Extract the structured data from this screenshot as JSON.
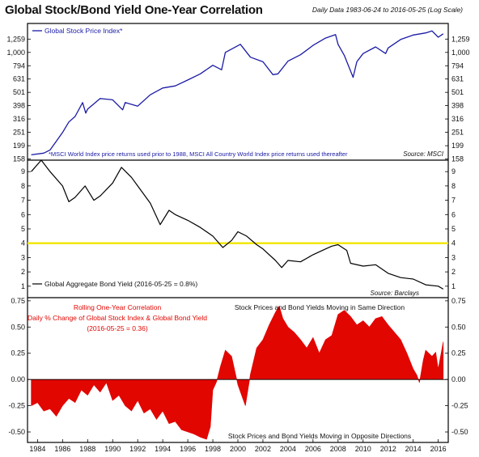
{
  "title": "Global Stock/Bond Yield One-Year Correlation",
  "subtitle": "Daily Data 1983-06-24 to 2016-05-25 (Log Scale)",
  "colors": {
    "stock": "#1a1aa6",
    "bond": "#000000",
    "corr": "#e10600",
    "ref_line": "#f2e600",
    "frame": "#000000"
  },
  "chart_data": [
    {
      "type": "line",
      "panel": "top",
      "legend": "Global Stock Price Index*",
      "note": "*MSCI World Index price returns used prior to 1988, MSCI All Country World Index price returns used thereafter",
      "source": "Source: MSCI",
      "scale": "log",
      "ylim": [
        155,
        1650
      ],
      "yticks": [
        158,
        199,
        251,
        316,
        398,
        501,
        631,
        794,
        1000,
        1259
      ],
      "ytick_labels": [
        "158",
        "199",
        "251",
        "316",
        "398",
        "501",
        "631",
        "794",
        "1,000",
        "1,259"
      ],
      "series": [
        {
          "x": [
            1983.5,
            1984.5,
            1985,
            1985.5,
            1986,
            1986.5,
            1987,
            1987.6,
            1987.85,
            1988,
            1989,
            1990,
            1990.8,
            1991,
            1992,
            1993,
            1994,
            1995,
            1996,
            1997,
            1998,
            1998.7,
            1999,
            2000.2,
            2001,
            2002,
            2002.8,
            2003.2,
            2004,
            2005,
            2006,
            2007,
            2007.8,
            2008,
            2008.5,
            2009.2,
            2009.5,
            2010,
            2011,
            2011.8,
            2012,
            2013,
            2014,
            2015,
            2015.5,
            2016,
            2016.4
          ],
          "y": [
            170,
            175,
            185,
            215,
            250,
            300,
            330,
            420,
            350,
            375,
            450,
            440,
            370,
            420,
            395,
            480,
            540,
            560,
            620,
            690,
            800,
            740,
            1000,
            1150,
            920,
            850,
            680,
            690,
            860,
            960,
            1130,
            1280,
            1360,
            1150,
            950,
            650,
            850,
            980,
            1100,
            980,
            1080,
            1250,
            1350,
            1400,
            1450,
            1300,
            1380
          ]
        }
      ]
    },
    {
      "type": "line",
      "panel": "middle",
      "legend": "Global Aggregate Bond Yield (2016-05-25 = 0.8%)",
      "source": "Source: Barclays",
      "ylim": [
        0.2,
        9.8
      ],
      "yticks": [
        1,
        2,
        3,
        4,
        5,
        6,
        7,
        8,
        9
      ],
      "ytick_labels": [
        "1",
        "2",
        "3",
        "4",
        "5",
        "6",
        "7",
        "8",
        "9"
      ],
      "reference_line": 4,
      "series": [
        {
          "x": [
            1983.5,
            1984.3,
            1985,
            1986,
            1986.5,
            1987,
            1987.8,
            1988.5,
            1989,
            1990,
            1990.7,
            1991.5,
            1992,
            1993,
            1993.8,
            1994.5,
            1995,
            1996,
            1997,
            1998,
            1998.8,
            1999.5,
            2000,
            2000.7,
            2001.5,
            2002,
            2003,
            2003.5,
            2004,
            2005,
            2006,
            2007,
            2007.5,
            2008,
            2008.7,
            2009,
            2010,
            2011,
            2012,
            2013,
            2014,
            2015,
            2016,
            2016.4
          ],
          "y": [
            9.0,
            9.8,
            9.0,
            8.0,
            6.9,
            7.2,
            8.0,
            7.0,
            7.3,
            8.2,
            9.3,
            8.6,
            8.0,
            6.8,
            5.3,
            6.3,
            6.0,
            5.6,
            5.1,
            4.5,
            3.7,
            4.2,
            4.8,
            4.5,
            3.9,
            3.6,
            2.8,
            2.3,
            2.8,
            2.7,
            3.2,
            3.6,
            3.8,
            3.9,
            3.5,
            2.6,
            2.4,
            2.5,
            1.9,
            1.6,
            1.5,
            1.1,
            1.0,
            0.8
          ]
        }
      ]
    },
    {
      "type": "area",
      "panel": "bottom",
      "title": "Rolling One-Year Correlation",
      "subtitle": "Daily % Change of Global Stock Index & Global Bond Yield",
      "value_label": "(2016-05-25 = 0.36)",
      "annotation_top": "Stock Prices and Bond Yields Moving in Same Direction",
      "annotation_bottom": "Stock Prices and Bond Yields Moving in Opposite Directions",
      "ylim": [
        -0.6,
        0.78
      ],
      "yticks": [
        -0.5,
        -0.25,
        0,
        0.25,
        0.5,
        0.75
      ],
      "ytick_labels": [
        "-0.50",
        "-0.25",
        "0.00",
        "0.25",
        "0.50",
        "0.75"
      ],
      "xticks": [
        1984,
        1986,
        1988,
        1990,
        1992,
        1994,
        1996,
        1998,
        2000,
        2002,
        2004,
        2006,
        2008,
        2010,
        2012,
        2014,
        2016
      ],
      "xtick_labels": [
        "1984",
        "1986",
        "1988",
        "1990",
        "1992",
        "1994",
        "1996",
        "1998",
        "2000",
        "2002",
        "2004",
        "2006",
        "2008",
        "2010",
        "2012",
        "2014",
        "2016"
      ],
      "series": [
        {
          "x": [
            1983.5,
            1984,
            1984.5,
            1985,
            1985.5,
            1986,
            1986.5,
            1987,
            1987.5,
            1988,
            1988.5,
            1989,
            1989.5,
            1990,
            1990.5,
            1991,
            1991.5,
            1992,
            1992.5,
            1993,
            1993.5,
            1994,
            1994.5,
            1995,
            1995.5,
            1996,
            1996.5,
            1997,
            1997.5,
            1997.8,
            1998,
            1998.3,
            1998.6,
            1999,
            1999.5,
            2000,
            2000.3,
            2000.6,
            2001,
            2001.5,
            2002,
            2002.5,
            2003,
            2003.3,
            2003.6,
            2004,
            2004.5,
            2005,
            2005.5,
            2006,
            2006.5,
            2007,
            2007.5,
            2008,
            2008.5,
            2009,
            2009.5,
            2010,
            2010.5,
            2011,
            2011.5,
            2012,
            2012.5,
            2013,
            2013.5,
            2014,
            2014.3,
            2014.5,
            2014.8,
            2015,
            2015.5,
            2015.8,
            2016,
            2016.4
          ],
          "y": [
            -0.25,
            -0.22,
            -0.3,
            -0.28,
            -0.35,
            -0.25,
            -0.18,
            -0.22,
            -0.1,
            -0.15,
            -0.05,
            -0.12,
            -0.03,
            -0.2,
            -0.15,
            -0.25,
            -0.3,
            -0.2,
            -0.32,
            -0.28,
            -0.38,
            -0.3,
            -0.42,
            -0.4,
            -0.48,
            -0.5,
            -0.52,
            -0.55,
            -0.57,
            -0.45,
            -0.1,
            -0.02,
            0.12,
            0.28,
            0.22,
            -0.05,
            -0.15,
            -0.25,
            0.05,
            0.3,
            0.38,
            0.52,
            0.64,
            0.7,
            0.58,
            0.5,
            0.45,
            0.38,
            0.3,
            0.4,
            0.25,
            0.38,
            0.42,
            0.62,
            0.66,
            0.6,
            0.52,
            0.56,
            0.5,
            0.58,
            0.6,
            0.52,
            0.45,
            0.38,
            0.25,
            0.1,
            0.04,
            -0.03,
            0.18,
            0.28,
            0.22,
            0.26,
            0.1,
            0.36
          ]
        }
      ]
    }
  ]
}
